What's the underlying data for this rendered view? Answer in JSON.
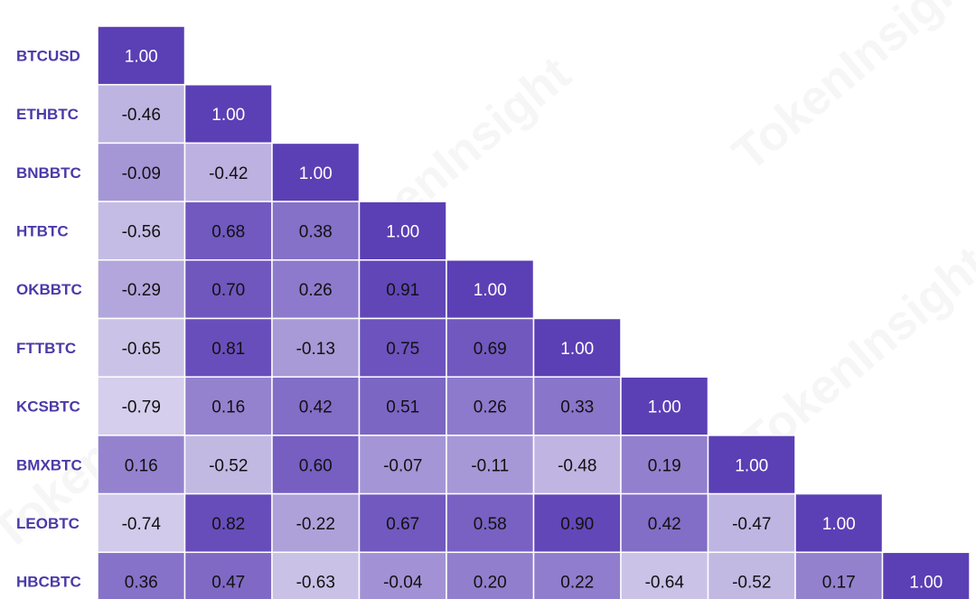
{
  "chart_data": {
    "type": "heatmap",
    "title": "",
    "row_labels": [
      "BTCUSD",
      "ETHBTC",
      "BNBBTC",
      "HTBTC",
      "OKBBTC",
      "FTTBTC",
      "KCSBTC",
      "BMXBTC",
      "LEOBTC",
      "HBCBTC"
    ],
    "column_labels": [
      "BTCUSD",
      "ETHBTC",
      "BNBBTC",
      "HTBTC",
      "OKBBTC",
      "FTTBTC",
      "KCSBTC",
      "BMXBTC",
      "LEOBTC",
      "HBCBTC"
    ],
    "values": [
      [
        1.0
      ],
      [
        -0.46,
        1.0
      ],
      [
        -0.09,
        -0.42,
        1.0
      ],
      [
        -0.56,
        0.68,
        0.38,
        1.0
      ],
      [
        -0.29,
        0.7,
        0.26,
        0.91,
        1.0
      ],
      [
        -0.65,
        0.81,
        -0.13,
        0.75,
        0.69,
        1.0
      ],
      [
        -0.79,
        0.16,
        0.42,
        0.51,
        0.26,
        0.33,
        1.0
      ],
      [
        0.16,
        -0.52,
        0.6,
        -0.07,
        -0.11,
        -0.48,
        0.19,
        1.0
      ],
      [
        -0.74,
        0.82,
        -0.22,
        0.67,
        0.58,
        0.9,
        0.42,
        -0.47,
        1.0
      ],
      [
        0.36,
        0.47,
        -0.63,
        -0.04,
        0.2,
        0.22,
        -0.64,
        -0.52,
        0.17,
        1.0
      ]
    ],
    "value_range": [
      -1,
      1
    ],
    "layout": "lower-triangular",
    "legend": "none",
    "grid": false
  },
  "colors": {
    "label": "#4a3aa8",
    "low": "#e3dff2",
    "high": "#5b3fb5",
    "text_dark": "#111111",
    "text_light": "#ffffff"
  },
  "watermark": {
    "text": "TokenInsight"
  }
}
